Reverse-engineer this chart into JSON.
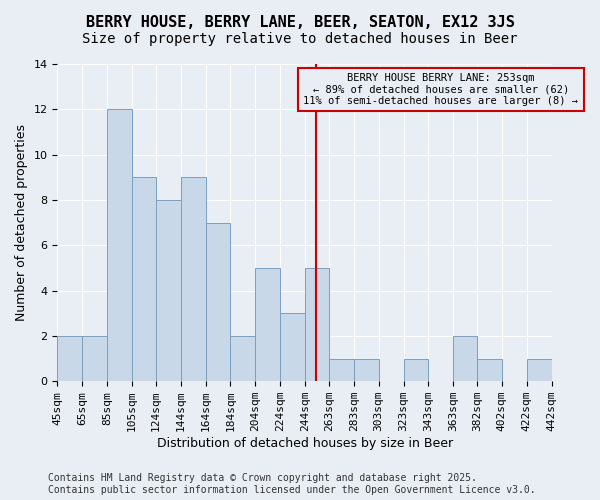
{
  "title": "BERRY HOUSE, BERRY LANE, BEER, SEATON, EX12 3JS",
  "subtitle": "Size of property relative to detached houses in Beer",
  "xlabel": "Distribution of detached houses by size in Beer",
  "ylabel": "Number of detached properties",
  "bar_color": "#c8d8e8",
  "bar_edgecolor": "#7aa0c0",
  "vline_x": 253,
  "vline_color": "#cc0000",
  "annotation_text": "BERRY HOUSE BERRY LANE: 253sqm\n← 89% of detached houses are smaller (62)\n11% of semi-detached houses are larger (8) →",
  "annotation_box_color": "#cc0000",
  "bins": [
    45,
    65,
    85,
    105,
    124,
    144,
    164,
    184,
    204,
    224,
    244,
    263,
    283,
    303,
    323,
    343,
    363,
    382,
    402,
    422,
    442
  ],
  "counts": [
    2,
    2,
    12,
    9,
    8,
    9,
    7,
    2,
    5,
    3,
    5,
    1,
    1,
    0,
    1,
    0,
    2,
    1,
    0,
    1
  ],
  "tick_labels": [
    "45sqm",
    "65sqm",
    "85sqm",
    "105sqm",
    "124sqm",
    "144sqm",
    "164sqm",
    "184sqm",
    "204sqm",
    "224sqm",
    "244sqm",
    "263sqm",
    "283sqm",
    "303sqm",
    "323sqm",
    "343sqm",
    "363sqm",
    "382sqm",
    "402sqm",
    "422sqm",
    "442sqm"
  ],
  "ylim": [
    0,
    14
  ],
  "yticks": [
    0,
    2,
    4,
    6,
    8,
    10,
    12,
    14
  ],
  "footer": "Contains HM Land Registry data © Crown copyright and database right 2025.\nContains public sector information licensed under the Open Government Licence v3.0.",
  "bg_color": "#e8eef4",
  "grid_color": "#ffffff",
  "title_fontsize": 11,
  "subtitle_fontsize": 10,
  "axis_label_fontsize": 9,
  "tick_fontsize": 8,
  "footer_fontsize": 7
}
